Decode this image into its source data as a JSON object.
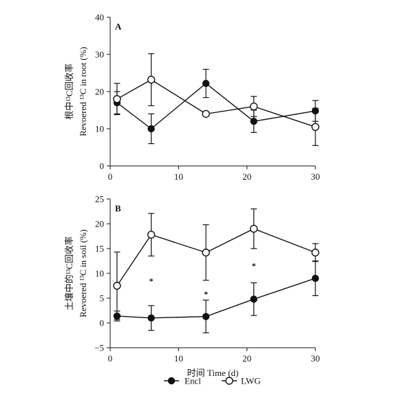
{
  "chart_data": [
    {
      "type": "line",
      "panel_label": "A",
      "ylabel_cn": "根中¹³C回收率",
      "ylabel_en": "Revoered ¹³C in root (%)",
      "xlabel": "",
      "x": [
        1,
        6,
        14,
        21,
        30
      ],
      "xlim": [
        0,
        30
      ],
      "xticks": [
        "0",
        "10",
        "20",
        "30"
      ],
      "xtick_values": [
        0,
        10,
        20,
        30
      ],
      "ylim": [
        0,
        40
      ],
      "yticks": [
        "0",
        "10",
        "20",
        "30",
        "40"
      ],
      "ytick_values": [
        0,
        10,
        20,
        30,
        40
      ],
      "series": [
        {
          "name": "Encl",
          "marker": "filled-circle",
          "values": [
            17.0,
            10.0,
            22.2,
            12.0,
            14.8
          ],
          "errors": [
            3.0,
            4.0,
            3.8,
            3.0,
            2.8
          ]
        },
        {
          "name": "LWG",
          "marker": "open-circle",
          "values": [
            18.0,
            23.2,
            14.0,
            16.0,
            10.5
          ],
          "errors": [
            4.2,
            7.0,
            0.6,
            2.7,
            5.0
          ]
        }
      ],
      "annotations": []
    },
    {
      "type": "line",
      "panel_label": "B",
      "ylabel_cn": "土壤中的¹³C回收率",
      "ylabel_en": "Revoered ¹³C in soil (%)",
      "xlabel": "时间 Time (d)",
      "x": [
        1,
        6,
        14,
        21,
        30
      ],
      "xlim": [
        0,
        30
      ],
      "xticks": [
        "0",
        "10",
        "20",
        "30"
      ],
      "xtick_values": [
        0,
        10,
        20,
        30
      ],
      "ylim": [
        -5,
        25
      ],
      "yticks": [
        "−5",
        "0",
        "5",
        "10",
        "15",
        "20",
        "25"
      ],
      "ytick_values": [
        -5,
        0,
        5,
        10,
        15,
        20,
        25
      ],
      "series": [
        {
          "name": "Encl",
          "marker": "filled-circle",
          "values": [
            1.4,
            1.0,
            1.3,
            4.8,
            9.0
          ],
          "errors": [
            1.0,
            2.5,
            3.3,
            3.3,
            3.5
          ]
        },
        {
          "name": "LWG",
          "marker": "open-circle",
          "values": [
            7.5,
            17.8,
            14.2,
            19.0,
            14.2
          ],
          "errors": [
            6.8,
            4.3,
            5.6,
            4.0,
            1.8
          ]
        }
      ],
      "annotations": [
        {
          "text": "*",
          "x": 6,
          "y": 8.5
        },
        {
          "text": "*",
          "x": 14,
          "y": 5.8
        },
        {
          "text": "*",
          "x": 21,
          "y": 11.5
        }
      ]
    }
  ],
  "legend": {
    "placement": "bottom-center",
    "items": [
      {
        "label": "Encl",
        "marker": "filled-circle"
      },
      {
        "label": "LWG",
        "marker": "open-circle"
      }
    ]
  },
  "colors": {
    "ink": "#111111",
    "background": "#ffffff"
  }
}
